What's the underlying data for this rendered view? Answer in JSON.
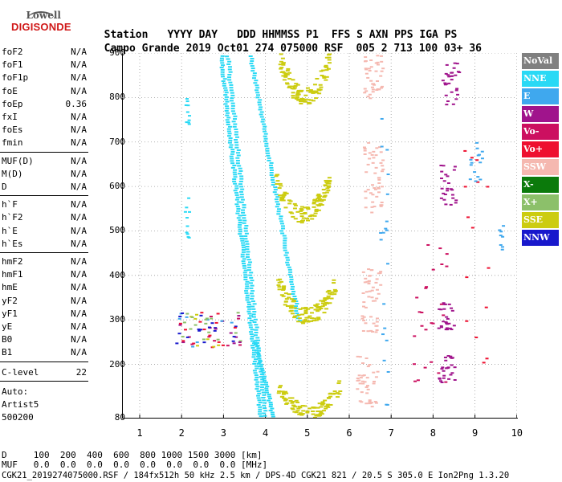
{
  "logo": {
    "top": "Lowell",
    "main": "DIGISONDE"
  },
  "header": {
    "line1": [
      "Station",
      "YYYY DAY",
      "DDD HHMMSS P1",
      "FFS S AXN PPS IGA PS"
    ],
    "line2": [
      "Campo Grande",
      "2019 Oct01",
      "274 075000 RSF",
      "005 2 713 100 03+ 36"
    ]
  },
  "params": {
    "group1": [
      {
        "k": "foF2",
        "v": "N/A"
      },
      {
        "k": "foF1",
        "v": "N/A"
      },
      {
        "k": "foF1p",
        "v": "N/A"
      },
      {
        "k": "foE",
        "v": "N/A"
      },
      {
        "k": "foEp",
        "v": "0.36"
      },
      {
        "k": "fxI",
        "v": "N/A"
      },
      {
        "k": "foEs",
        "v": "N/A"
      },
      {
        "k": "fmin",
        "v": "N/A"
      }
    ],
    "group2": [
      {
        "k": "MUF(D)",
        "v": "N/A"
      },
      {
        "k": "M(D)",
        "v": "N/A"
      },
      {
        "k": "D",
        "v": "N/A"
      }
    ],
    "group3": [
      {
        "k": "h`F",
        "v": "N/A"
      },
      {
        "k": "h`F2",
        "v": "N/A"
      },
      {
        "k": "h`E",
        "v": "N/A"
      },
      {
        "k": "h`Es",
        "v": "N/A"
      }
    ],
    "group4": [
      {
        "k": "hmF2",
        "v": "N/A"
      },
      {
        "k": "hmF1",
        "v": "N/A"
      },
      {
        "k": "hmE",
        "v": "N/A"
      },
      {
        "k": "yF2",
        "v": "N/A"
      },
      {
        "k": "yF1",
        "v": "N/A"
      },
      {
        "k": "yE",
        "v": "N/A"
      },
      {
        "k": "B0",
        "v": "N/A"
      },
      {
        "k": "B1",
        "v": "N/A"
      }
    ],
    "clevel": {
      "k": "C-level",
      "v": "22"
    },
    "auto": [
      "Auto:",
      "Artist5",
      "500200"
    ]
  },
  "plot": {
    "y_ticks": [
      "900",
      "800",
      "700",
      "600",
      "500",
      "400",
      "300",
      "200",
      "80"
    ],
    "x_ticks": [
      "1",
      "2",
      "3",
      "4",
      "5",
      "6",
      "7",
      "8",
      "9",
      "10"
    ]
  },
  "legend": [
    {
      "label": "NoVal",
      "color": "#808080"
    },
    {
      "label": "NNE",
      "color": "#29d9f5"
    },
    {
      "label": "E",
      "color": "#3fa8ee"
    },
    {
      "label": "W",
      "color": "#a0148c"
    },
    {
      "label": "Vo-",
      "color": "#cc1060"
    },
    {
      "label": "Vo+",
      "color": "#ee1030"
    },
    {
      "label": "SSW",
      "color": "#f5b8b0"
    },
    {
      "label": "X-",
      "color": "#0b7a0b"
    },
    {
      "label": "X+",
      "color": "#8cc06a"
    },
    {
      "label": "SSE",
      "color": "#cccc10"
    },
    {
      "label": "NNW",
      "color": "#1818cc"
    }
  ],
  "footer": {
    "d_line": "D     100  200  400  600  800 1000 1500 3000 [km]",
    "muf_line": "MUF   0.0  0.0  0.0  0.0  0.0  0.0  0.0  0.0 [MHz]",
    "file_line": "CGK21_2019274075000.RSF / 184fx512h 50 kHz 2.5 km / DPS-4D CGK21 821 / 20.5 S 305.0 E Ion2Png 1.3.20"
  }
}
